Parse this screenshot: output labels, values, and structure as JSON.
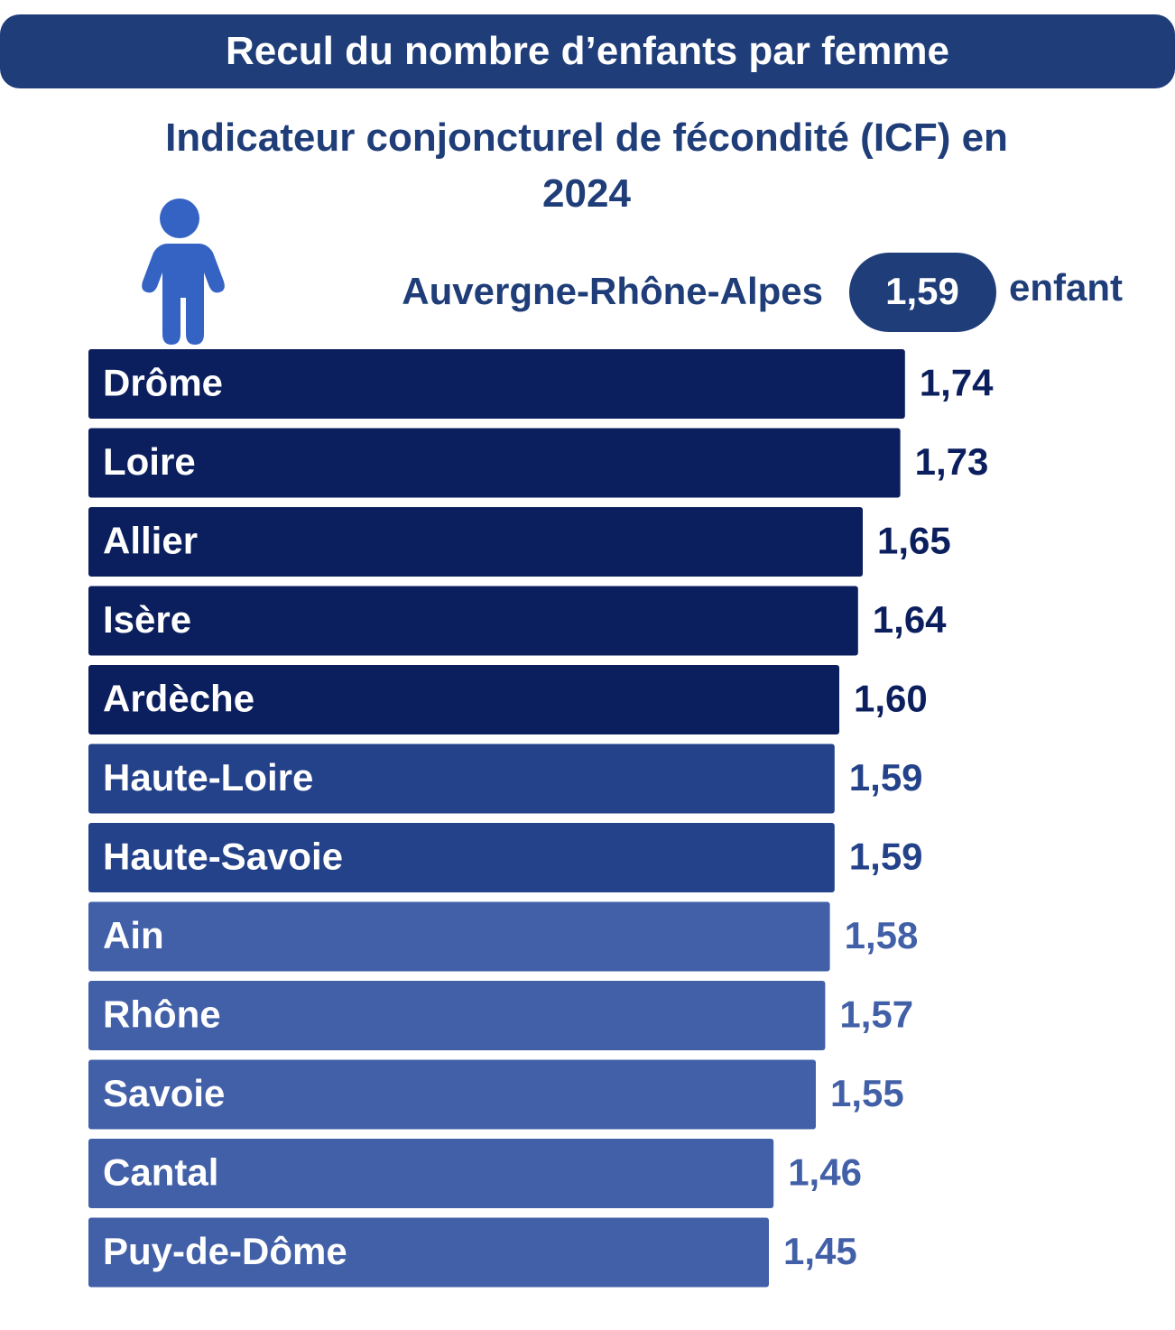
{
  "chart_data": {
    "type": "bar",
    "orientation": "horizontal",
    "header": "Recul du nombre d’enfants par femme",
    "title": "Indicateur conjoncturel de fécondité (ICF) en 2024",
    "reference": {
      "label": "Auvergne-Rhône-Alpes",
      "value": 1.59,
      "value_label": "1,59",
      "unit": "enfant"
    },
    "categories": [
      "Drôme",
      "Loire",
      "Allier",
      "Isère",
      "Ardèche",
      "Haute-Loire",
      "Haute-Savoie",
      "Ain",
      "Rhône",
      "Savoie",
      "Cantal",
      "Puy-de-Dôme"
    ],
    "values": [
      1.74,
      1.73,
      1.65,
      1.64,
      1.6,
      1.59,
      1.59,
      1.58,
      1.57,
      1.55,
      1.46,
      1.45
    ],
    "value_labels": [
      "1,74",
      "1,73",
      "1,65",
      "1,64",
      "1,60",
      "1,59",
      "1,59",
      "1,58",
      "1,57",
      "1,55",
      "1,46",
      "1,45"
    ],
    "colors": [
      "#0b1f5e",
      "#0b1f5e",
      "#0b1f5e",
      "#0b1f5e",
      "#0b1f5e",
      "#23428a",
      "#23428a",
      "#4260a8",
      "#4260a8",
      "#4260a8",
      "#4260a8",
      "#4260a8"
    ]
  }
}
